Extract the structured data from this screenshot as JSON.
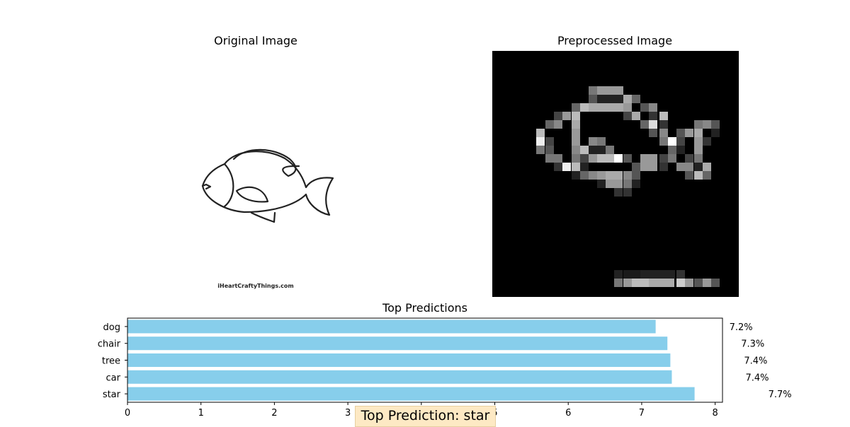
{
  "panels": {
    "original_title": "Original Image",
    "preprocessed_title": "Preprocessed Image",
    "watermark": "iHeartCraftyThings.com"
  },
  "chart_data": {
    "type": "bar",
    "orientation": "horizontal",
    "title": "Top Predictions",
    "categories": [
      "dog",
      "chair",
      "tree",
      "car",
      "star"
    ],
    "values": [
      7.19,
      7.35,
      7.39,
      7.41,
      7.72
    ],
    "data_labels": [
      "7.2%",
      "7.3%",
      "7.4%",
      "7.4%",
      "7.7%"
    ],
    "xlim": [
      0,
      8.1
    ],
    "xticks": [
      0,
      1,
      2,
      3,
      4,
      5,
      6,
      7,
      8
    ],
    "bar_color": "#87ceeb",
    "grid": false
  },
  "top_prediction": "Top Prediction: star",
  "colors": {
    "highlight_box": "#fde9c4"
  }
}
